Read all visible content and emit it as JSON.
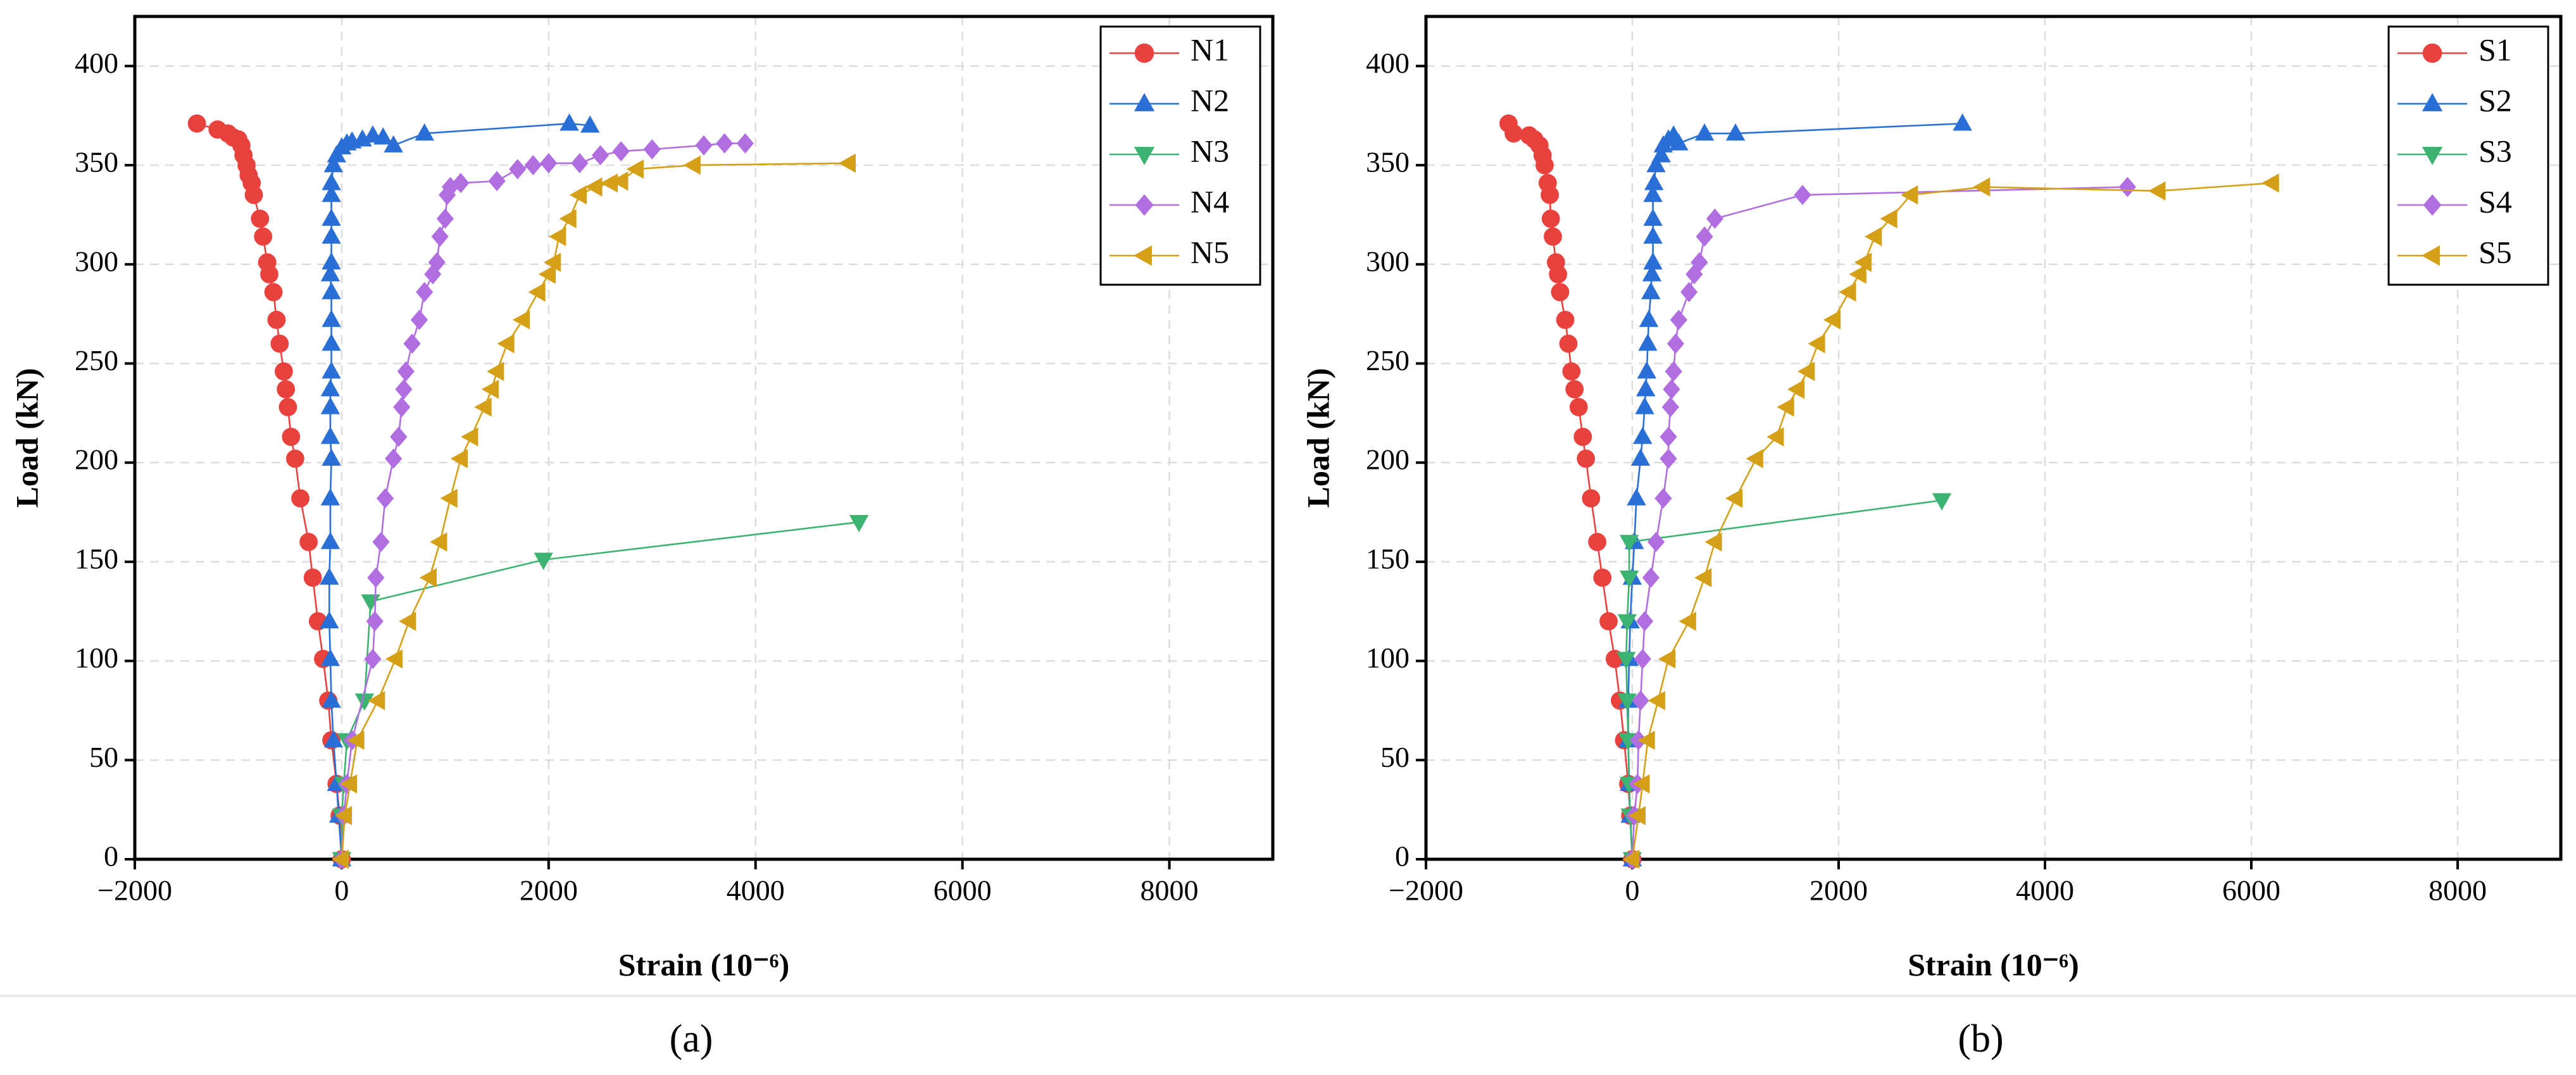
{
  "chart_data": [
    {
      "type": "line",
      "caption": "(a)",
      "xlabel": "Strain (10⁻⁶)",
      "ylabel": "Load (kN)",
      "xlim": [
        -2000,
        9000
      ],
      "ylim": [
        0,
        425
      ],
      "xticks": [
        {
          "value": -2000,
          "label": "−2000"
        },
        0,
        2000,
        4000,
        6000,
        8000
      ],
      "yticks": [
        0,
        50,
        100,
        150,
        200,
        250,
        300,
        350,
        400
      ],
      "grid": true,
      "legend": "upper right",
      "series": [
        {
          "name": "N1",
          "color": "#e8413e",
          "marker": "circle",
          "x": [
            0,
            -20,
            -50,
            -100,
            -130,
            -180,
            -230,
            -280,
            -320,
            -400,
            -450,
            -490,
            -520,
            -540,
            -560,
            -600,
            -630,
            -660,
            -700,
            -720,
            -760,
            -790,
            -850,
            -870,
            -900,
            -920,
            -950,
            -970,
            -1000,
            -1050,
            -1100,
            -1200,
            -1400
          ],
          "values": [
            0,
            22,
            38,
            60,
            80,
            101,
            120,
            142,
            160,
            182,
            202,
            213,
            228,
            237,
            246,
            260,
            272,
            286,
            295,
            301,
            314,
            323,
            335,
            341,
            345,
            350,
            355,
            360,
            363,
            364,
            366,
            368,
            371
          ]
        },
        {
          "name": "N2",
          "color": "#2a6fd6",
          "marker": "triangle-up",
          "x": [
            0,
            -30,
            -50,
            -80,
            -100,
            -110,
            -120,
            -120,
            -110,
            -110,
            -100,
            -110,
            -110,
            -110,
            -100,
            -100,
            -100,
            -100,
            -110,
            -100,
            -100,
            -100,
            -100,
            -100,
            -80,
            -50,
            0,
            50,
            100,
            200,
            300,
            400,
            500,
            800,
            2200,
            2400
          ],
          "values": [
            0,
            22,
            38,
            60,
            80,
            101,
            120,
            142,
            160,
            182,
            202,
            213,
            228,
            237,
            246,
            260,
            272,
            286,
            295,
            301,
            314,
            323,
            335,
            341,
            350,
            355,
            359,
            361,
            362,
            363,
            365,
            364,
            360,
            366,
            371,
            370
          ]
        },
        {
          "name": "N3",
          "color": "#3cb371",
          "marker": "triangle-down",
          "x": [
            0,
            0,
            20,
            50,
            220,
            280,
            1950,
            5000
          ],
          "values": [
            0,
            22,
            38,
            60,
            80,
            130,
            151,
            170
          ]
        },
        {
          "name": "N4",
          "color": "#b06ee0",
          "marker": "diamond",
          "x": [
            0,
            20,
            50,
            100,
            300,
            320,
            330,
            380,
            420,
            500,
            550,
            580,
            600,
            620,
            680,
            750,
            800,
            880,
            920,
            950,
            1000,
            1020,
            1050,
            1150,
            1500,
            1700,
            1850,
            2000,
            2300,
            2500,
            2700,
            3000,
            3500,
            3700,
            3900
          ],
          "values": [
            0,
            22,
            38,
            60,
            101,
            120,
            142,
            160,
            182,
            202,
            213,
            228,
            237,
            246,
            260,
            272,
            286,
            295,
            301,
            314,
            323,
            335,
            339,
            341,
            342,
            348,
            350,
            351,
            351,
            355,
            357,
            358,
            360,
            361,
            361
          ]
        },
        {
          "name": "N5",
          "color": "#d4a017",
          "marker": "triangle-left",
          "x": [
            0,
            30,
            80,
            150,
            350,
            520,
            650,
            850,
            950,
            1050,
            1150,
            1250,
            1380,
            1450,
            1500,
            1600,
            1750,
            1900,
            2000,
            2050,
            2100,
            2200,
            2300,
            2450,
            2600,
            2700,
            2850,
            3400,
            4900
          ],
          "values": [
            0,
            22,
            38,
            60,
            80,
            101,
            120,
            142,
            160,
            182,
            202,
            213,
            228,
            237,
            246,
            260,
            272,
            286,
            295,
            301,
            314,
            323,
            335,
            339,
            341,
            342,
            348,
            350,
            351
          ]
        }
      ]
    },
    {
      "type": "line",
      "caption": "(b)",
      "xlabel": "Strain (10⁻⁶)",
      "ylabel": "Load (kN)",
      "xlim": [
        -2000,
        9000
      ],
      "ylim": [
        0,
        425
      ],
      "xticks": [
        {
          "value": -2000,
          "label": "−2000"
        },
        0,
        2000,
        4000,
        6000,
        8000
      ],
      "yticks": [
        0,
        50,
        100,
        150,
        200,
        250,
        300,
        350,
        400
      ],
      "grid": true,
      "legend": "upper right",
      "series": [
        {
          "name": "S1",
          "color": "#e8413e",
          "marker": "circle",
          "x": [
            0,
            -20,
            -40,
            -80,
            -120,
            -170,
            -230,
            -290,
            -340,
            -400,
            -450,
            -480,
            -520,
            -560,
            -590,
            -620,
            -650,
            -700,
            -720,
            -740,
            -770,
            -790,
            -800,
            -820,
            -850,
            -870,
            -900,
            -950,
            -1000,
            -1150,
            -1200
          ],
          "values": [
            0,
            22,
            38,
            60,
            80,
            101,
            120,
            142,
            160,
            182,
            202,
            213,
            228,
            237,
            246,
            260,
            272,
            286,
            295,
            301,
            314,
            323,
            335,
            341,
            350,
            355,
            360,
            363,
            365,
            366,
            371
          ]
        },
        {
          "name": "S2",
          "color": "#2a6fd6",
          "marker": "triangle-up",
          "x": [
            0,
            -20,
            -30,
            -40,
            -40,
            -30,
            -20,
            0,
            20,
            40,
            80,
            100,
            120,
            130,
            140,
            150,
            160,
            180,
            190,
            200,
            200,
            200,
            200,
            210,
            230,
            280,
            300,
            350,
            400,
            450,
            700,
            1000,
            3200
          ],
          "values": [
            0,
            22,
            38,
            60,
            80,
            101,
            120,
            142,
            160,
            182,
            202,
            213,
            228,
            237,
            246,
            260,
            272,
            286,
            295,
            301,
            314,
            323,
            335,
            341,
            350,
            355,
            360,
            363,
            365,
            361,
            366,
            366,
            371
          ]
        },
        {
          "name": "S3",
          "color": "#3cb371",
          "marker": "triangle-down",
          "x": [
            0,
            -20,
            -30,
            -40,
            -50,
            -60,
            -50,
            -30,
            -30,
            3000
          ],
          "values": [
            0,
            22,
            38,
            60,
            80,
            101,
            120,
            142,
            160,
            181
          ]
        },
        {
          "name": "S4",
          "color": "#b06ee0",
          "marker": "diamond",
          "x": [
            0,
            20,
            50,
            60,
            80,
            100,
            120,
            180,
            230,
            300,
            350,
            350,
            370,
            380,
            400,
            420,
            450,
            550,
            600,
            650,
            700,
            800,
            1650,
            4800
          ],
          "values": [
            0,
            22,
            38,
            60,
            80,
            101,
            120,
            142,
            160,
            182,
            202,
            213,
            228,
            237,
            246,
            260,
            272,
            286,
            295,
            301,
            314,
            323,
            335,
            339
          ]
        },
        {
          "name": "S5",
          "color": "#d4a017",
          "marker": "triangle-left",
          "x": [
            0,
            60,
            100,
            150,
            250,
            350,
            550,
            700,
            800,
            1000,
            1200,
            1400,
            1500,
            1600,
            1700,
            1800,
            1950,
            2100,
            2200,
            2250,
            2350,
            2500,
            2700,
            3400,
            5100,
            6200
          ],
          "values": [
            0,
            22,
            38,
            60,
            80,
            101,
            120,
            142,
            160,
            182,
            202,
            213,
            228,
            237,
            246,
            260,
            272,
            286,
            295,
            301,
            314,
            323,
            335,
            339,
            337,
            341
          ]
        }
      ]
    }
  ]
}
